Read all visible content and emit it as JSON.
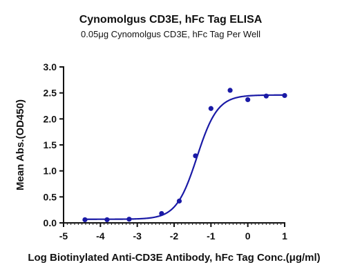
{
  "chart_data": {
    "type": "scatter",
    "title": "Cynomolgus CD3E, hFc Tag ELISA",
    "subtitle": "0.05μg Cynomolgus CD3E, hFc Tag Per Well",
    "xlabel": "Log Biotinylated Anti-CD3E Antibody, hFc Tag Conc.(μg/ml)",
    "ylabel": "Mean Abs.(OD450)",
    "xlim": [
      -5,
      1
    ],
    "ylim": [
      0,
      3
    ],
    "xticks": [
      "-5",
      "-4",
      "-3",
      "-2",
      "-1",
      "0",
      "1"
    ],
    "yticks": [
      "0.0",
      "0.5",
      "1.0",
      "1.5",
      "2.0",
      "2.5",
      "3.0"
    ],
    "grid": false,
    "series": [
      {
        "x": [
          -4.42,
          -3.82,
          -3.22,
          -2.34,
          -1.86,
          -1.42,
          -1.0,
          -0.48,
          0.0,
          0.5,
          1.0
        ],
        "y": [
          0.06,
          0.06,
          0.07,
          0.18,
          0.42,
          1.29,
          2.2,
          2.55,
          2.37,
          2.44,
          2.45
        ],
        "fit": {
          "model": "4PL",
          "bottom": 0.07,
          "top": 2.46,
          "logEC50": -1.38,
          "hill": 1.55
        }
      }
    ],
    "colors": {
      "series": "#1a1aa6",
      "axis": "#111111"
    }
  }
}
